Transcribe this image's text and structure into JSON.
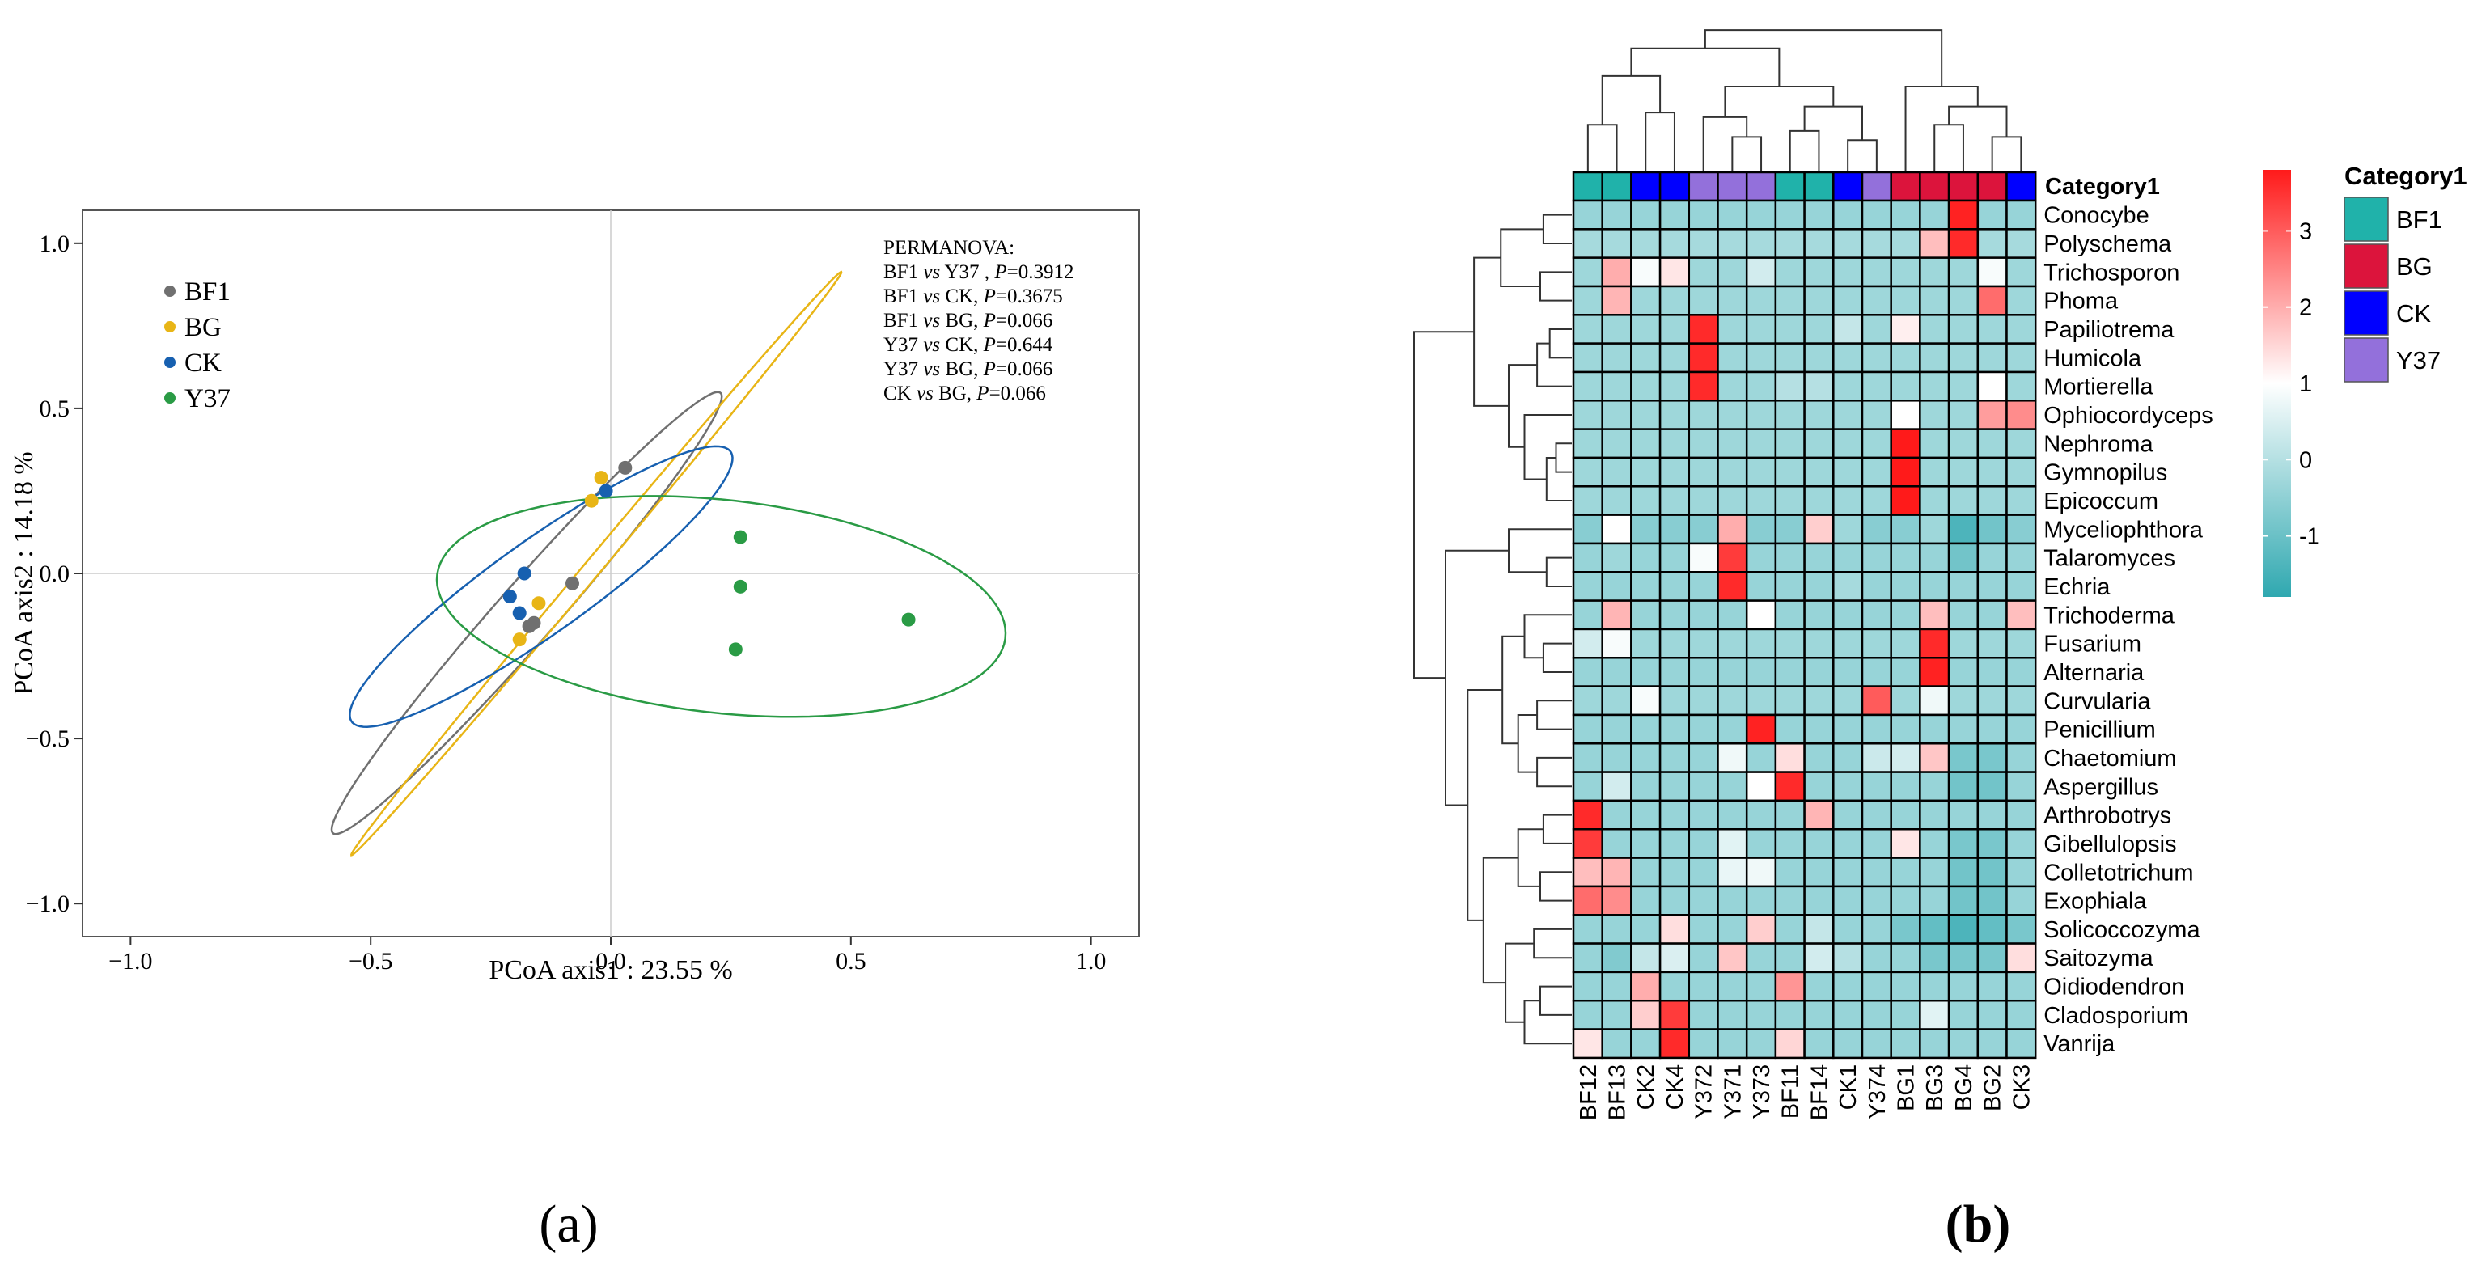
{
  "panels": {
    "a": {
      "label": "(a)"
    },
    "b": {
      "label": "(b)"
    }
  },
  "chart_data": [
    {
      "type": "scatter",
      "title": "",
      "xlabel": "PCoA axis1 : 23.55 %",
      "ylabel": "PCoA axis2 : 14.18 %",
      "xlim": [
        -1.1,
        1.1
      ],
      "ylim": [
        -1.1,
        1.1
      ],
      "xticks": [
        -1.0,
        -0.5,
        0.0,
        0.5,
        1.0
      ],
      "xtick_labels": [
        "−1.0",
        "−0.5",
        "0.0",
        "0.5",
        "1.0"
      ],
      "yticks": [
        1.0,
        0.5,
        0.0,
        -0.5,
        -1.0
      ],
      "ytick_labels": [
        "1.0",
        "0.5",
        "0.0",
        "−0.5",
        "−1.0"
      ],
      "grid": false,
      "zero_lines": true,
      "legend_position": "top-left",
      "series": [
        {
          "name": "BF1",
          "color": "#707070",
          "points": [
            [
              0.03,
              0.32
            ],
            [
              -0.08,
              -0.03
            ],
            [
              -0.16,
              -0.15
            ],
            [
              -0.17,
              -0.16
            ]
          ],
          "ellipse": {
            "cx": -0.175,
            "cy": -0.12,
            "rx": 0.78,
            "ry": 0.07,
            "angle_deg": 59
          }
        },
        {
          "name": "BG",
          "color": "#e8b516",
          "points": [
            [
              -0.02,
              0.29
            ],
            [
              -0.04,
              0.22
            ],
            [
              -0.15,
              -0.09
            ],
            [
              -0.19,
              -0.2
            ]
          ],
          "ellipse": {
            "cx": -0.03,
            "cy": 0.03,
            "rx": 1.02,
            "ry": 0.02,
            "angle_deg": 60
          }
        },
        {
          "name": "CK",
          "color": "#1760b0",
          "points": [
            [
              -0.18,
              0.0
            ],
            [
              -0.21,
              -0.07
            ],
            [
              -0.19,
              -0.12
            ],
            [
              -0.01,
              0.25
            ]
          ],
          "ellipse": {
            "cx": -0.145,
            "cy": -0.04,
            "rx": 0.57,
            "ry": 0.12,
            "angle_deg": 47
          }
        },
        {
          "name": "Y37",
          "color": "#2a9b45",
          "points": [
            [
              0.27,
              0.11
            ],
            [
              0.27,
              -0.04
            ],
            [
              0.26,
              -0.23
            ],
            [
              0.62,
              -0.14
            ]
          ],
          "ellipse": {
            "cx": 0.23,
            "cy": -0.1,
            "rx": 0.6,
            "ry": 0.32,
            "angle_deg": -11
          }
        }
      ],
      "annotation_lines": [
        {
          "parts": [
            {
              "t": "PERMANOVA:",
              "i": false
            }
          ]
        },
        {
          "parts": [
            {
              "t": "BF1 ",
              "i": false
            },
            {
              "t": "vs",
              "i": true
            },
            {
              "t": " Y37 , ",
              "i": false
            },
            {
              "t": "P",
              "i": true
            },
            {
              "t": "=0.3912",
              "i": false
            }
          ]
        },
        {
          "parts": [
            {
              "t": "BF1 ",
              "i": false
            },
            {
              "t": "vs",
              "i": true
            },
            {
              "t": " CK, ",
              "i": false
            },
            {
              "t": "P",
              "i": true
            },
            {
              "t": "=0.3675",
              "i": false
            }
          ]
        },
        {
          "parts": [
            {
              "t": "BF1 ",
              "i": false
            },
            {
              "t": "vs",
              "i": true
            },
            {
              "t": " BG, ",
              "i": false
            },
            {
              "t": "P",
              "i": true
            },
            {
              "t": "=0.066",
              "i": false
            }
          ]
        },
        {
          "parts": [
            {
              "t": "Y37 ",
              "i": false
            },
            {
              "t": "vs",
              "i": true
            },
            {
              "t": " CK, ",
              "i": false
            },
            {
              "t": "P",
              "i": true
            },
            {
              "t": "=0.644",
              "i": false
            }
          ]
        },
        {
          "parts": [
            {
              "t": "Y37 ",
              "i": false
            },
            {
              "t": "vs",
              "i": true
            },
            {
              "t": " BG, ",
              "i": false
            },
            {
              "t": "P",
              "i": true
            },
            {
              "t": "=0.066",
              "i": false
            }
          ]
        },
        {
          "parts": [
            {
              "t": "CK ",
              "i": false
            },
            {
              "t": "vs",
              "i": true
            },
            {
              "t": " BG, ",
              "i": false
            },
            {
              "t": "P",
              "i": true
            },
            {
              "t": "=0.066",
              "i": false
            }
          ]
        }
      ]
    },
    {
      "type": "heatmap",
      "title": "",
      "columns": [
        "BF12",
        "BF13",
        "CK2",
        "CK4",
        "Y372",
        "Y371",
        "Y373",
        "BF11",
        "BF14",
        "CK1",
        "Y374",
        "BG1",
        "BG3",
        "BG4",
        "BG2",
        "CK3"
      ],
      "column_category": [
        "BF1",
        "BF1",
        "CK",
        "CK",
        "Y37",
        "Y37",
        "Y37",
        "BF1",
        "BF1",
        "CK",
        "Y37",
        "BG",
        "BG",
        "BG",
        "BG",
        "CK"
      ],
      "category_title": "Category1",
      "category_colors": {
        "BF1": "#20b2aa",
        "BG": "#dc143c",
        "CK": "#0000ff",
        "Y37": "#9370db"
      },
      "category_legend_order": [
        "BF1",
        "BG",
        "CK",
        "Y37"
      ],
      "rows": [
        "Conocybe",
        "Polyschema",
        "Trichosporon",
        "Phoma",
        "Papiliotrema",
        "Humicola",
        "Mortierella",
        "Ophiocordyceps",
        "Nephroma",
        "Gymnopilus",
        "Epicoccum",
        "Myceliophthora",
        "Talaromyces",
        "Echria",
        "Trichoderma",
        "Fusarium",
        "Alternaria",
        "Curvularia",
        "Penicillium",
        "Chaetomium",
        "Aspergillus",
        "Arthrobotrys",
        "Gibellulopsis",
        "Colletotrichum",
        "Exophiala",
        "Solicoccozyma",
        "Saitozyma",
        "Oidiodendron",
        "Cladosporium",
        "Vanrija"
      ],
      "colorbar": {
        "min": -1.8,
        "max": 3.8,
        "ticks": [
          3,
          2,
          1,
          0,
          -1
        ],
        "colors": [
          "#2fa8b0",
          "#ffffff",
          "#ff1a1a"
        ]
      },
      "values": [
        [
          -0.4,
          -0.4,
          -0.4,
          -0.4,
          -0.4,
          -0.4,
          -0.4,
          -0.4,
          -0.4,
          -0.4,
          -0.4,
          -0.4,
          -0.4,
          3.7,
          -0.4,
          -0.4
        ],
        [
          -0.2,
          -0.2,
          -0.2,
          -0.2,
          -0.2,
          -0.2,
          -0.2,
          -0.2,
          -0.2,
          -0.2,
          -0.2,
          -0.2,
          1.8,
          3.6,
          -0.2,
          -0.2
        ],
        [
          -0.3,
          2.0,
          0.9,
          1.3,
          -0.3,
          -0.3,
          0.4,
          -0.3,
          -0.3,
          -0.3,
          -0.3,
          -0.3,
          -0.3,
          -0.3,
          0.9,
          -0.3
        ],
        [
          -0.3,
          1.9,
          -0.3,
          -0.3,
          -0.3,
          -0.3,
          -0.3,
          -0.3,
          -0.3,
          -0.3,
          -0.3,
          -0.3,
          -0.3,
          -0.3,
          2.8,
          -0.3
        ],
        [
          -0.3,
          -0.3,
          -0.3,
          -0.3,
          3.6,
          -0.3,
          -0.3,
          -0.3,
          -0.3,
          0.2,
          -0.3,
          1.2,
          -0.3,
          -0.3,
          -0.3,
          -0.3
        ],
        [
          -0.3,
          -0.3,
          -0.3,
          -0.3,
          3.6,
          -0.3,
          -0.3,
          -0.3,
          -0.3,
          -0.3,
          -0.3,
          -0.3,
          -0.3,
          -0.3,
          -0.3,
          -0.3
        ],
        [
          -0.3,
          -0.3,
          -0.3,
          -0.3,
          3.6,
          -0.3,
          -0.3,
          0.0,
          0.0,
          -0.3,
          -0.3,
          -0.3,
          -0.3,
          -0.3,
          1.0,
          -0.3
        ],
        [
          -0.3,
          -0.3,
          -0.3,
          -0.3,
          -0.3,
          -0.3,
          -0.3,
          -0.3,
          -0.3,
          -0.3,
          -0.3,
          1.0,
          -0.3,
          -0.3,
          2.2,
          2.4
        ],
        [
          -0.3,
          -0.3,
          -0.3,
          -0.3,
          -0.3,
          -0.3,
          -0.3,
          -0.3,
          -0.3,
          -0.3,
          -0.3,
          3.8,
          -0.3,
          -0.3,
          -0.3,
          -0.3
        ],
        [
          -0.3,
          -0.3,
          -0.3,
          -0.3,
          -0.3,
          -0.3,
          -0.3,
          -0.3,
          -0.3,
          -0.3,
          -0.3,
          3.8,
          -0.3,
          -0.3,
          -0.3,
          -0.3
        ],
        [
          -0.3,
          -0.3,
          -0.3,
          -0.3,
          -0.3,
          -0.3,
          -0.3,
          -0.3,
          -0.3,
          -0.3,
          -0.3,
          3.8,
          -0.3,
          -0.3,
          -0.3,
          -0.3
        ],
        [
          -0.6,
          1.0,
          -0.6,
          -0.6,
          -0.6,
          2.0,
          -0.6,
          -0.6,
          1.6,
          -0.3,
          -0.6,
          -0.6,
          -0.3,
          -1.4,
          -0.9,
          -0.6
        ],
        [
          -0.4,
          -0.3,
          -0.4,
          -0.4,
          0.9,
          3.4,
          -0.4,
          -0.4,
          -0.4,
          -0.4,
          -0.4,
          -0.4,
          -0.4,
          -0.9,
          -0.4,
          -0.4
        ],
        [
          -0.4,
          -0.4,
          -0.4,
          -0.4,
          -0.4,
          3.6,
          -0.4,
          -0.4,
          -0.4,
          -0.2,
          -0.4,
          -0.4,
          -0.4,
          -0.4,
          -0.4,
          -0.4
        ],
        [
          -0.4,
          1.9,
          -0.4,
          -0.4,
          -0.4,
          -0.4,
          1.0,
          -0.4,
          -0.4,
          -0.4,
          -0.4,
          -0.4,
          1.8,
          -0.4,
          -0.4,
          1.8
        ],
        [
          0.4,
          0.9,
          -0.3,
          -0.3,
          -0.3,
          -0.3,
          -0.3,
          -0.3,
          -0.3,
          -0.3,
          -0.3,
          -0.3,
          3.6,
          -0.3,
          -0.3,
          -0.3
        ],
        [
          -0.4,
          -0.4,
          -0.4,
          -0.4,
          -0.4,
          -0.4,
          -0.4,
          -0.4,
          -0.4,
          -0.4,
          -0.4,
          -0.4,
          3.7,
          -0.4,
          -0.4,
          -0.4
        ],
        [
          -0.3,
          -0.3,
          0.9,
          -0.3,
          -0.3,
          -0.3,
          -0.3,
          -0.3,
          -0.3,
          -0.3,
          3.0,
          -0.3,
          0.8,
          -0.3,
          -0.3,
          -0.3
        ],
        [
          -0.4,
          -0.4,
          -0.4,
          -0.4,
          -0.4,
          -0.4,
          3.7,
          -0.4,
          -0.4,
          -0.4,
          -0.4,
          -0.4,
          -0.4,
          -0.4,
          -0.4,
          -0.4
        ],
        [
          -0.4,
          -0.4,
          -0.4,
          -0.4,
          -0.4,
          0.8,
          -0.4,
          1.4,
          -0.4,
          -0.4,
          0.3,
          0.4,
          1.7,
          -0.8,
          -0.8,
          -0.4
        ],
        [
          -0.4,
          0.4,
          -0.4,
          -0.4,
          -0.4,
          -0.4,
          1.0,
          3.6,
          -0.4,
          -0.4,
          -0.4,
          -0.4,
          -0.4,
          -0.9,
          -0.9,
          -0.4
        ],
        [
          3.6,
          -0.4,
          -0.4,
          -0.4,
          -0.4,
          -0.4,
          -0.4,
          -0.4,
          1.9,
          -0.4,
          -0.4,
          -0.4,
          -0.4,
          -0.4,
          -0.4,
          -0.4
        ],
        [
          3.4,
          -0.4,
          -0.4,
          -0.4,
          -0.4,
          0.6,
          -0.4,
          -0.4,
          -0.4,
          -0.4,
          -0.4,
          1.3,
          -0.4,
          -0.8,
          -0.8,
          -0.4
        ],
        [
          1.8,
          1.9,
          -0.4,
          -0.4,
          -0.4,
          0.7,
          0.8,
          -0.4,
          -0.4,
          -0.4,
          -0.4,
          -0.4,
          -0.4,
          -0.9,
          -0.9,
          -0.4
        ],
        [
          2.8,
          2.4,
          -0.4,
          -0.4,
          -0.4,
          -0.4,
          -0.4,
          -0.4,
          -0.4,
          -0.4,
          -0.4,
          -0.4,
          -0.4,
          -0.9,
          -0.9,
          -0.4
        ],
        [
          -0.4,
          -0.4,
          -0.4,
          1.4,
          -0.4,
          -0.4,
          1.6,
          -0.4,
          0.2,
          -0.4,
          -0.4,
          -0.8,
          -1.1,
          -1.4,
          -1.1,
          -0.8
        ],
        [
          -0.4,
          -0.7,
          0.2,
          0.5,
          -0.4,
          1.7,
          -0.4,
          -0.4,
          0.4,
          0.0,
          -0.4,
          -0.4,
          -0.8,
          -0.8,
          -0.8,
          1.4
        ],
        [
          -0.4,
          -0.4,
          2.0,
          -0.4,
          -0.4,
          -0.4,
          -0.4,
          2.3,
          -0.4,
          -0.4,
          -0.4,
          -0.4,
          -0.4,
          -0.4,
          -0.4,
          -0.4
        ],
        [
          -0.4,
          -0.4,
          1.6,
          3.4,
          -0.4,
          -0.4,
          -0.4,
          -0.4,
          -0.4,
          -0.4,
          -0.4,
          -0.4,
          0.6,
          -0.4,
          -0.4,
          -0.4
        ],
        [
          1.3,
          -0.4,
          -0.4,
          3.6,
          -0.4,
          -0.4,
          -0.4,
          1.5,
          -0.4,
          -0.4,
          -0.4,
          -0.4,
          -0.4,
          -0.4,
          -0.4,
          -0.4
        ]
      ]
    }
  ]
}
